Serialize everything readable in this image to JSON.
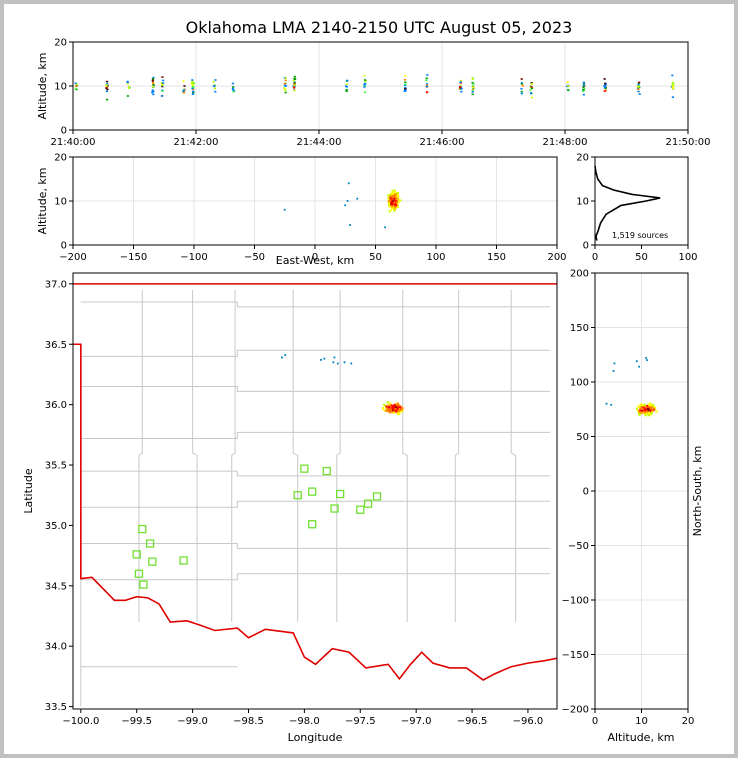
{
  "title": "Oklahoma LMA 2140-2150 UTC August 05, 2023",
  "chart_data": [
    {
      "id": "alt_time",
      "type": "scatter",
      "xlabel": "",
      "ylabel": "Altitude, km",
      "x_ticks": [
        "21:40:00",
        "21:42:00",
        "21:44:00",
        "21:46:00",
        "21:48:00",
        "21:50:00"
      ],
      "xlim_minutes": [
        0,
        10
      ],
      "y_ticks": [
        "0",
        "10",
        "20"
      ],
      "ylim": [
        0,
        20
      ],
      "columns_minutes": [
        0.05,
        0.55,
        0.9,
        1.3,
        1.45,
        1.8,
        1.95,
        2.3,
        2.6,
        3.45,
        3.6,
        4.45,
        4.75,
        5.4,
        5.75,
        6.3,
        6.5,
        7.3,
        7.45,
        8.05,
        8.3,
        8.65,
        9.2,
        9.75
      ],
      "grid": true
    },
    {
      "id": "alt_ew",
      "type": "scatter",
      "xlabel": "East-West, km",
      "ylabel": "Altitude, km",
      "x_ticks": [
        "−200",
        "−150",
        "−100",
        "−50",
        "0",
        "50",
        "100",
        "150",
        "200"
      ],
      "xlim": [
        -200,
        200
      ],
      "y_ticks": [
        "0",
        "10",
        "20"
      ],
      "ylim": [
        0,
        20
      ],
      "cluster": {
        "x": 65,
        "y": 10
      },
      "grid": true
    },
    {
      "id": "alt_hist",
      "type": "line",
      "x_ticks": [
        "0",
        "50",
        "100"
      ],
      "xlim": [
        0,
        100
      ],
      "y_ticks": [
        "0",
        "10",
        "20"
      ],
      "ylim": [
        0,
        20
      ],
      "profile": [
        [
          2,
          1
        ],
        [
          1,
          2
        ],
        [
          3,
          3
        ],
        [
          6,
          5
        ],
        [
          12,
          7
        ],
        [
          28,
          9
        ],
        [
          55,
          10
        ],
        [
          70,
          10.7
        ],
        [
          40,
          11.5
        ],
        [
          20,
          12.5
        ],
        [
          8,
          13.5
        ],
        [
          3,
          15
        ],
        [
          1,
          16.5
        ],
        [
          0,
          18
        ]
      ],
      "annotation": "1,519 sources"
    },
    {
      "id": "plan_view",
      "type": "scatter",
      "xlabel": "Longitude",
      "ylabel": "Latitude",
      "x_ticks": [
        "−100.0",
        "−99.5",
        "−99.0",
        "−98.5",
        "−98.0",
        "−97.5",
        "−97.0",
        "−96.5",
        "−96.0"
      ],
      "xlim": [
        -100.07,
        -95.74
      ],
      "y_ticks": [
        "33.5",
        "34.0",
        "34.5",
        "35.0",
        "35.5",
        "36.0",
        "36.5",
        "37.0"
      ],
      "ylim": [
        33.48,
        37.09
      ],
      "cluster": {
        "lon": -97.2,
        "lat": 35.97
      },
      "stations": [
        [
          -99.45,
          34.97
        ],
        [
          -99.38,
          34.85
        ],
        [
          -99.5,
          34.76
        ],
        [
          -99.48,
          34.6
        ],
        [
          -99.36,
          34.7
        ],
        [
          -99.44,
          34.51
        ],
        [
          -99.08,
          34.71
        ],
        [
          -98.0,
          35.47
        ],
        [
          -98.06,
          35.25
        ],
        [
          -97.93,
          35.28
        ],
        [
          -97.8,
          35.45
        ],
        [
          -97.93,
          35.01
        ],
        [
          -97.73,
          35.14
        ],
        [
          -97.68,
          35.26
        ],
        [
          -97.5,
          35.13
        ],
        [
          -97.43,
          35.18
        ],
        [
          -97.35,
          35.24
        ]
      ],
      "grid": true
    },
    {
      "id": "ns_alt",
      "type": "scatter",
      "xlabel": "Altitude, km",
      "ylabel": "North-South, km",
      "x_ticks": [
        "0",
        "10",
        "20"
      ],
      "xlim": [
        0,
        20
      ],
      "y_ticks": [
        "−200",
        "−150",
        "−100",
        "−50",
        "0",
        "50",
        "100",
        "150",
        "200"
      ],
      "ylim": [
        -200,
        200
      ],
      "cluster": {
        "x": 11,
        "y": 75
      },
      "grid": true
    }
  ]
}
